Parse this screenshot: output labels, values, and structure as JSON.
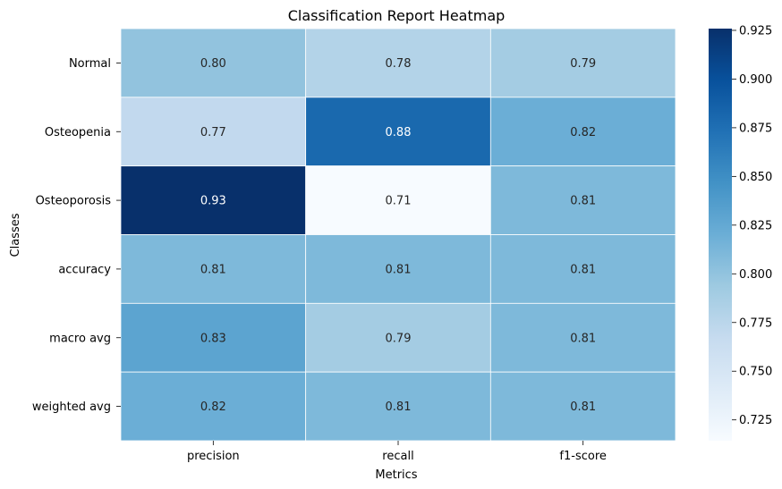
{
  "chart_data": {
    "type": "heatmap",
    "title": "Classification Report Heatmap",
    "xlabel": "Metrics",
    "ylabel": "Classes",
    "x_categories": [
      "precision",
      "recall",
      "f1-score"
    ],
    "y_categories": [
      "Normal",
      "Osteopenia",
      "Osteoporosis",
      "accuracy",
      "macro avg",
      "weighted avg"
    ],
    "values": [
      [
        0.8,
        0.78,
        0.79
      ],
      [
        0.77,
        0.88,
        0.82
      ],
      [
        0.93,
        0.71,
        0.81
      ],
      [
        0.81,
        0.81,
        0.81
      ],
      [
        0.83,
        0.79,
        0.81
      ],
      [
        0.82,
        0.81,
        0.81
      ]
    ],
    "cell_labels": [
      [
        "0.80",
        "0.78",
        "0.79"
      ],
      [
        "0.77",
        "0.88",
        "0.82"
      ],
      [
        "0.93",
        "0.71",
        "0.81"
      ],
      [
        "0.81",
        "0.81",
        "0.81"
      ],
      [
        "0.83",
        "0.79",
        "0.81"
      ],
      [
        "0.82",
        "0.81",
        "0.81"
      ]
    ],
    "colormap": "Blues",
    "color_range": [
      0.7143,
      0.9259
    ],
    "colorbar_ticks": [
      "0.725",
      "0.750",
      "0.775",
      "0.800",
      "0.825",
      "0.850",
      "0.875",
      "0.900",
      "0.925"
    ]
  }
}
